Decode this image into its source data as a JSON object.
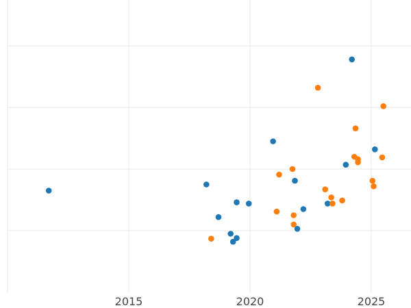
{
  "chart_data": {
    "type": "scatter",
    "title": "",
    "xlabel": "",
    "ylabel": "",
    "x_ticks": [
      "2015",
      "2020",
      "2025"
    ],
    "x_tick_values": [
      2015,
      2020,
      2025
    ],
    "xlim": [
      2010,
      2026.5
    ],
    "ylim": [
      0,
      4.7
    ],
    "y_gridlines": [
      1,
      2,
      3,
      4
    ],
    "show_y_tick_labels": false,
    "grid": true,
    "legend": "none",
    "series": [
      {
        "color": "#1f77b4",
        "points": [
          {
            "x": 2011.7,
            "y": 1.65
          },
          {
            "x": 2018.2,
            "y": 1.75
          },
          {
            "x": 2018.7,
            "y": 1.22
          },
          {
            "x": 2019.2,
            "y": 0.95
          },
          {
            "x": 2019.3,
            "y": 0.82
          },
          {
            "x": 2019.45,
            "y": 0.88
          },
          {
            "x": 2019.45,
            "y": 1.46
          },
          {
            "x": 2019.95,
            "y": 1.44
          },
          {
            "x": 2020.95,
            "y": 2.45
          },
          {
            "x": 2021.85,
            "y": 1.81
          },
          {
            "x": 2021.95,
            "y": 1.03
          },
          {
            "x": 2022.2,
            "y": 1.35
          },
          {
            "x": 2023.2,
            "y": 1.44
          },
          {
            "x": 2023.95,
            "y": 2.07
          },
          {
            "x": 2024.2,
            "y": 3.78
          },
          {
            "x": 2025.15,
            "y": 2.32
          }
        ]
      },
      {
        "color": "#ff7f0e",
        "points": [
          {
            "x": 2018.4,
            "y": 0.87
          },
          {
            "x": 2021.1,
            "y": 1.31
          },
          {
            "x": 2021.2,
            "y": 1.91
          },
          {
            "x": 2021.75,
            "y": 2.0
          },
          {
            "x": 2021.8,
            "y": 1.25
          },
          {
            "x": 2021.8,
            "y": 1.1
          },
          {
            "x": 2022.8,
            "y": 3.32
          },
          {
            "x": 2023.1,
            "y": 1.67
          },
          {
            "x": 2023.35,
            "y": 1.54
          },
          {
            "x": 2023.4,
            "y": 1.44
          },
          {
            "x": 2023.8,
            "y": 1.49
          },
          {
            "x": 2024.3,
            "y": 2.2
          },
          {
            "x": 2024.35,
            "y": 2.66
          },
          {
            "x": 2024.45,
            "y": 2.16
          },
          {
            "x": 2024.45,
            "y": 2.11
          },
          {
            "x": 2025.05,
            "y": 1.81
          },
          {
            "x": 2025.1,
            "y": 1.72
          },
          {
            "x": 2025.45,
            "y": 2.19
          },
          {
            "x": 2025.5,
            "y": 3.02
          }
        ]
      }
    ]
  }
}
